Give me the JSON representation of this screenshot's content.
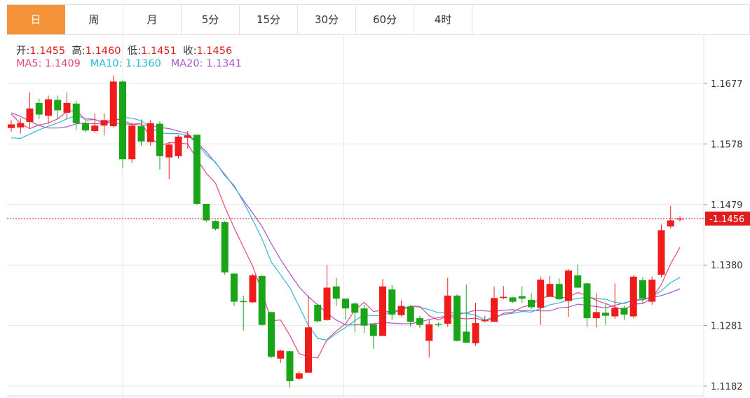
{
  "tabs": [
    "日",
    "周",
    "月",
    "5分",
    "15分",
    "30分",
    "60分",
    "4时"
  ],
  "active_tab": 0,
  "ohlc_header": {
    "open_label": "开:",
    "open": "1.1455",
    "high_label": "高:",
    "high": "1.1460",
    "low_label": "低:",
    "low": "1.1451",
    "close_label": "收:",
    "close": "1.1456"
  },
  "ma_header": {
    "ma5_label": "MA5:",
    "ma5": "1.1409",
    "ma10_label": "MA10:",
    "ma10": "1.1360",
    "ma20_label": "MA20:",
    "ma20": "1.1341"
  },
  "colors": {
    "up": "#f01c1c",
    "down": "#18a518",
    "ma5": "#e2477f",
    "ma10": "#29b9d6",
    "ma20": "#a855c9",
    "accent": "#f5933b",
    "last_price_bg": "#e21c1c"
  },
  "chart_data": {
    "type": "candlestick",
    "y_ticks": [
      "1.1677",
      "1.1578",
      "1.1479",
      "1.1380",
      "1.1281",
      "1.1182"
    ],
    "ylim": [
      1.1175,
      1.172
    ],
    "last_price": "1.1456",
    "grid": true,
    "candles": [
      [
        1.1604,
        1.161,
        1.1617,
        1.1598
      ],
      [
        1.1605,
        1.1612,
        1.162,
        1.1595
      ],
      [
        1.1614,
        1.1636,
        1.1662,
        1.1604
      ],
      [
        1.1645,
        1.1626,
        1.1652,
        1.1619
      ],
      [
        1.1624,
        1.1651,
        1.1657,
        1.1611
      ],
      [
        1.165,
        1.1633,
        1.1657,
        1.1619
      ],
      [
        1.1629,
        1.1645,
        1.1662,
        1.1619
      ],
      [
        1.1644,
        1.1612,
        1.1649,
        1.1601
      ],
      [
        1.1612,
        1.16,
        1.1615,
        1.1597
      ],
      [
        1.1599,
        1.1608,
        1.1628,
        1.1596
      ],
      [
        1.1608,
        1.1617,
        1.1628,
        1.1592
      ],
      [
        1.1607,
        1.168,
        1.169,
        1.1605
      ],
      [
        1.168,
        1.1553,
        1.1682,
        1.1538
      ],
      [
        1.1553,
        1.1608,
        1.1613,
        1.1547
      ],
      [
        1.1607,
        1.1582,
        1.1618,
        1.1575
      ],
      [
        1.1581,
        1.1612,
        1.1617,
        1.1575
      ],
      [
        1.1611,
        1.1558,
        1.1615,
        1.1536
      ],
      [
        1.1556,
        1.1577,
        1.1581,
        1.152
      ],
      [
        1.1558,
        1.159,
        1.1592,
        1.1554
      ],
      [
        1.1588,
        1.1592,
        1.1599,
        1.157
      ],
      [
        1.1593,
        1.148,
        1.1593,
        1.1478
      ],
      [
        1.148,
        1.1453,
        1.148,
        1.145
      ],
      [
        1.1452,
        1.1439,
        1.1453,
        1.1437
      ],
      [
        1.145,
        1.1368,
        1.1452,
        1.1364
      ],
      [
        1.1366,
        1.132,
        1.1366,
        1.1313
      ],
      [
        1.1321,
        1.132,
        1.133,
        1.1273
      ],
      [
        1.1319,
        1.1363,
        1.1365,
        1.1318
      ],
      [
        1.1362,
        1.1282,
        1.1364,
        1.1281
      ],
      [
        1.1303,
        1.123,
        1.1304,
        1.1228
      ],
      [
        1.1227,
        1.124,
        1.1241,
        1.122
      ],
      [
        1.1239,
        1.119,
        1.124,
        1.118
      ],
      [
        1.1194,
        1.1203,
        1.1206,
        1.1192
      ],
      [
        1.1204,
        1.1278,
        1.133,
        1.1204
      ],
      [
        1.1315,
        1.1288,
        1.1316,
        1.1286
      ],
      [
        1.129,
        1.1343,
        1.138,
        1.1289
      ],
      [
        1.1345,
        1.1325,
        1.1359,
        1.1313
      ],
      [
        1.1325,
        1.1309,
        1.1325,
        1.1291
      ],
      [
        1.1317,
        1.1302,
        1.1319,
        1.127
      ],
      [
        1.1309,
        1.1281,
        1.1315,
        1.1269
      ],
      [
        1.1283,
        1.1264,
        1.1284,
        1.1243
      ],
      [
        1.1264,
        1.1345,
        1.1357,
        1.1264
      ],
      [
        1.134,
        1.1299,
        1.1347,
        1.129
      ],
      [
        1.1298,
        1.1313,
        1.1322,
        1.1296
      ],
      [
        1.1312,
        1.1287,
        1.1314,
        1.1279
      ],
      [
        1.1293,
        1.1282,
        1.1297,
        1.1277
      ],
      [
        1.1256,
        1.1283,
        1.129,
        1.1229
      ],
      [
        1.1284,
        1.1283,
        1.1286,
        1.1279
      ],
      [
        1.1284,
        1.133,
        1.1359,
        1.1279
      ],
      [
        1.133,
        1.1256,
        1.1332,
        1.1255
      ],
      [
        1.1271,
        1.1253,
        1.1348,
        1.1253
      ],
      [
        1.1252,
        1.1285,
        1.1318,
        1.1248
      ],
      [
        1.1288,
        1.129,
        1.1297,
        1.1286
      ],
      [
        1.1287,
        1.1326,
        1.1345,
        1.1287
      ],
      [
        1.1326,
        1.1328,
        1.1346,
        1.1324
      ],
      [
        1.1327,
        1.132,
        1.1328,
        1.1318
      ],
      [
        1.1329,
        1.1325,
        1.1345,
        1.1318
      ],
      [
        1.1323,
        1.1311,
        1.1334,
        1.1308
      ],
      [
        1.131,
        1.1356,
        1.1361,
        1.1282
      ],
      [
        1.1328,
        1.1349,
        1.1362,
        1.1329
      ],
      [
        1.1349,
        1.1324,
        1.1358,
        1.1323
      ],
      [
        1.1321,
        1.1371,
        1.1373,
        1.1295
      ],
      [
        1.1363,
        1.1343,
        1.1381,
        1.1342
      ],
      [
        1.135,
        1.1293,
        1.1351,
        1.1279
      ],
      [
        1.1293,
        1.1303,
        1.1334,
        1.1278
      ],
      [
        1.1302,
        1.1297,
        1.1316,
        1.1282
      ],
      [
        1.1296,
        1.131,
        1.135,
        1.1292
      ],
      [
        1.131,
        1.1299,
        1.1313,
        1.129
      ],
      [
        1.1296,
        1.1361,
        1.1363,
        1.1293
      ],
      [
        1.1355,
        1.1325,
        1.136,
        1.1317
      ],
      [
        1.132,
        1.1356,
        1.1361,
        1.1315
      ],
      [
        1.1364,
        1.1437,
        1.1446,
        1.136
      ],
      [
        1.1443,
        1.1453,
        1.1477,
        1.144
      ],
      [
        1.1455,
        1.1456,
        1.146,
        1.1451
      ]
    ],
    "ma5": [
      1.1627,
      1.1611,
      1.1603,
      1.1609,
      1.1612,
      1.1619,
      1.1631,
      1.1633,
      1.1617,
      1.1618,
      1.1612,
      1.1619,
      1.1617,
      1.161,
      1.1612,
      1.1589,
      1.1575,
      1.158,
      1.158,
      1.1578,
      1.1553,
      1.153,
      1.1514,
      1.1475,
      1.1441,
      1.1409,
      1.1378,
      1.1336,
      1.1289,
      1.129,
      1.1265,
      1.1235,
      1.123,
      1.1228,
      1.1258,
      1.1272,
      1.1284,
      1.1306,
      1.1319,
      1.1304,
      1.1306,
      1.1302,
      1.1306,
      1.1313,
      1.1312,
      1.1297,
      1.129,
      1.1297,
      1.1293,
      1.1292,
      1.1293,
      1.1289,
      1.1292,
      1.1301,
      1.1303,
      1.1311,
      1.1315,
      1.1326,
      1.1329,
      1.1326,
      1.1328,
      1.1335,
      1.133,
      1.1322,
      1.1317,
      1.1311,
      1.1307,
      1.1316,
      1.1317,
      1.1326,
      1.1348,
      1.1382,
      1.1409
    ],
    "ma10": [
      1.1588,
      1.1587,
      1.1594,
      1.1601,
      1.1607,
      1.1612,
      1.1619,
      1.1624,
      1.162,
      1.1618,
      1.1613,
      1.1614,
      1.1622,
      1.162,
      1.1616,
      1.1605,
      1.1596,
      1.1595,
      1.1595,
      1.1592,
      1.1579,
      1.156,
      1.1548,
      1.1526,
      1.151,
      1.1483,
      1.1454,
      1.1423,
      1.1385,
      1.1364,
      1.1343,
      1.1312,
      1.1281,
      1.126,
      1.1257,
      1.1268,
      1.1278,
      1.1289,
      1.1299,
      1.1297,
      1.1298,
      1.1304,
      1.1308,
      1.1313,
      1.1311,
      1.1307,
      1.1302,
      1.1302,
      1.1302,
      1.1301,
      1.1298,
      1.129,
      1.1295,
      1.1299,
      1.1301,
      1.1304,
      1.1303,
      1.1309,
      1.1315,
      1.1318,
      1.1323,
      1.1325,
      1.1328,
      1.1325,
      1.1324,
      1.1319,
      1.1317,
      1.1323,
      1.1324,
      1.1328,
      1.1338,
      1.1351,
      1.136
    ],
    "ma20": [
      1.1629,
      1.1623,
      1.1615,
      1.1608,
      1.1604,
      1.1604,
      1.1606,
      1.1611,
      1.1612,
      1.1611,
      1.1612,
      1.1613,
      1.1611,
      1.161,
      1.1609,
      1.1608,
      1.1605,
      1.1603,
      1.1599,
      1.1595,
      1.158,
      1.1565,
      1.1547,
      1.1528,
      1.1508,
      1.1486,
      1.1465,
      1.1443,
      1.1415,
      1.1389,
      1.1366,
      1.1344,
      1.1328,
      1.1315,
      1.1301,
      1.129,
      1.1282,
      1.1282,
      1.1283,
      1.1284,
      1.1286,
      1.1285,
      1.1284,
      1.1284,
      1.1287,
      1.1291,
      1.1294,
      1.1297,
      1.1299,
      1.1302,
      1.1306,
      1.1305,
      1.1304,
      1.1306,
      1.1307,
      1.1305,
      1.1306,
      1.1305,
      1.1305,
      1.131,
      1.1311,
      1.1316,
      1.1314,
      1.1312,
      1.131,
      1.1314,
      1.1318,
      1.1322,
      1.1323,
      1.1327,
      1.133,
      1.1335,
      1.1341
    ]
  }
}
